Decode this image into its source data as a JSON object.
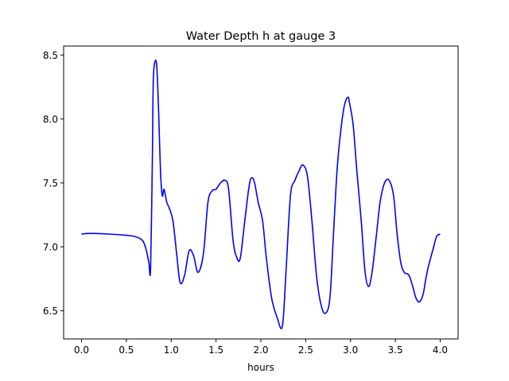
{
  "chart_data": {
    "type": "line",
    "title": "Water Depth h at gauge 3",
    "xlabel": "hours",
    "ylabel": "",
    "xlim": [
      -0.2,
      4.2
    ],
    "ylim": [
      6.28,
      8.57
    ],
    "xticks": [
      0.0,
      0.5,
      1.0,
      1.5,
      2.0,
      2.5,
      3.0,
      3.5,
      4.0
    ],
    "xtick_labels": [
      "0.0",
      "0.5",
      "1.0",
      "1.5",
      "2.0",
      "2.5",
      "3.0",
      "3.5",
      "4.0"
    ],
    "yticks": [
      6.5,
      7.0,
      7.5,
      8.0,
      8.5
    ],
    "ytick_labels": [
      "6.5",
      "7.0",
      "7.5",
      "8.0",
      "8.5"
    ],
    "grid": false,
    "series": [
      {
        "color": "#0000ff",
        "x": [
          0.0,
          0.1,
          0.3,
          0.5,
          0.6,
          0.68,
          0.72,
          0.75,
          0.77,
          0.79,
          0.8,
          0.82,
          0.84,
          0.86,
          0.88,
          0.9,
          0.92,
          0.95,
          0.98,
          1.02,
          1.06,
          1.1,
          1.15,
          1.2,
          1.25,
          1.3,
          1.36,
          1.41,
          1.46,
          1.5,
          1.55,
          1.6,
          1.64,
          1.69,
          1.73,
          1.77,
          1.82,
          1.87,
          1.9,
          1.93,
          1.97,
          2.02,
          2.06,
          2.12,
          2.18,
          2.24,
          2.28,
          2.33,
          2.38,
          2.43,
          2.47,
          2.52,
          2.57,
          2.62,
          2.67,
          2.72,
          2.77,
          2.81,
          2.85,
          2.89,
          2.93,
          2.97,
          2.99,
          3.03,
          3.07,
          3.12,
          3.16,
          3.2,
          3.24,
          3.29,
          3.33,
          3.38,
          3.43,
          3.48,
          3.52,
          3.56,
          3.6,
          3.65,
          3.69,
          3.73,
          3.77,
          3.81,
          3.84,
          3.87,
          3.92,
          3.96,
          4.0
        ],
        "y": [
          7.1,
          7.105,
          7.1,
          7.09,
          7.08,
          7.05,
          6.98,
          6.88,
          6.83,
          7.7,
          8.3,
          8.45,
          8.4,
          8.05,
          7.6,
          7.4,
          7.45,
          7.35,
          7.3,
          7.2,
          6.95,
          6.72,
          6.78,
          6.97,
          6.93,
          6.8,
          6.95,
          7.35,
          7.44,
          7.45,
          7.5,
          7.52,
          7.45,
          7.05,
          6.92,
          6.91,
          7.2,
          7.48,
          7.54,
          7.5,
          7.35,
          7.2,
          6.92,
          6.6,
          6.45,
          6.38,
          6.8,
          7.4,
          7.52,
          7.6,
          7.64,
          7.55,
          7.2,
          6.78,
          6.55,
          6.48,
          6.6,
          7.1,
          7.6,
          7.9,
          8.1,
          8.17,
          8.12,
          7.95,
          7.6,
          7.2,
          6.82,
          6.69,
          6.8,
          7.1,
          7.35,
          7.5,
          7.52,
          7.4,
          7.1,
          6.88,
          6.8,
          6.78,
          6.7,
          6.6,
          6.57,
          6.63,
          6.75,
          6.85,
          6.98,
          7.08,
          7.1
        ]
      }
    ]
  }
}
